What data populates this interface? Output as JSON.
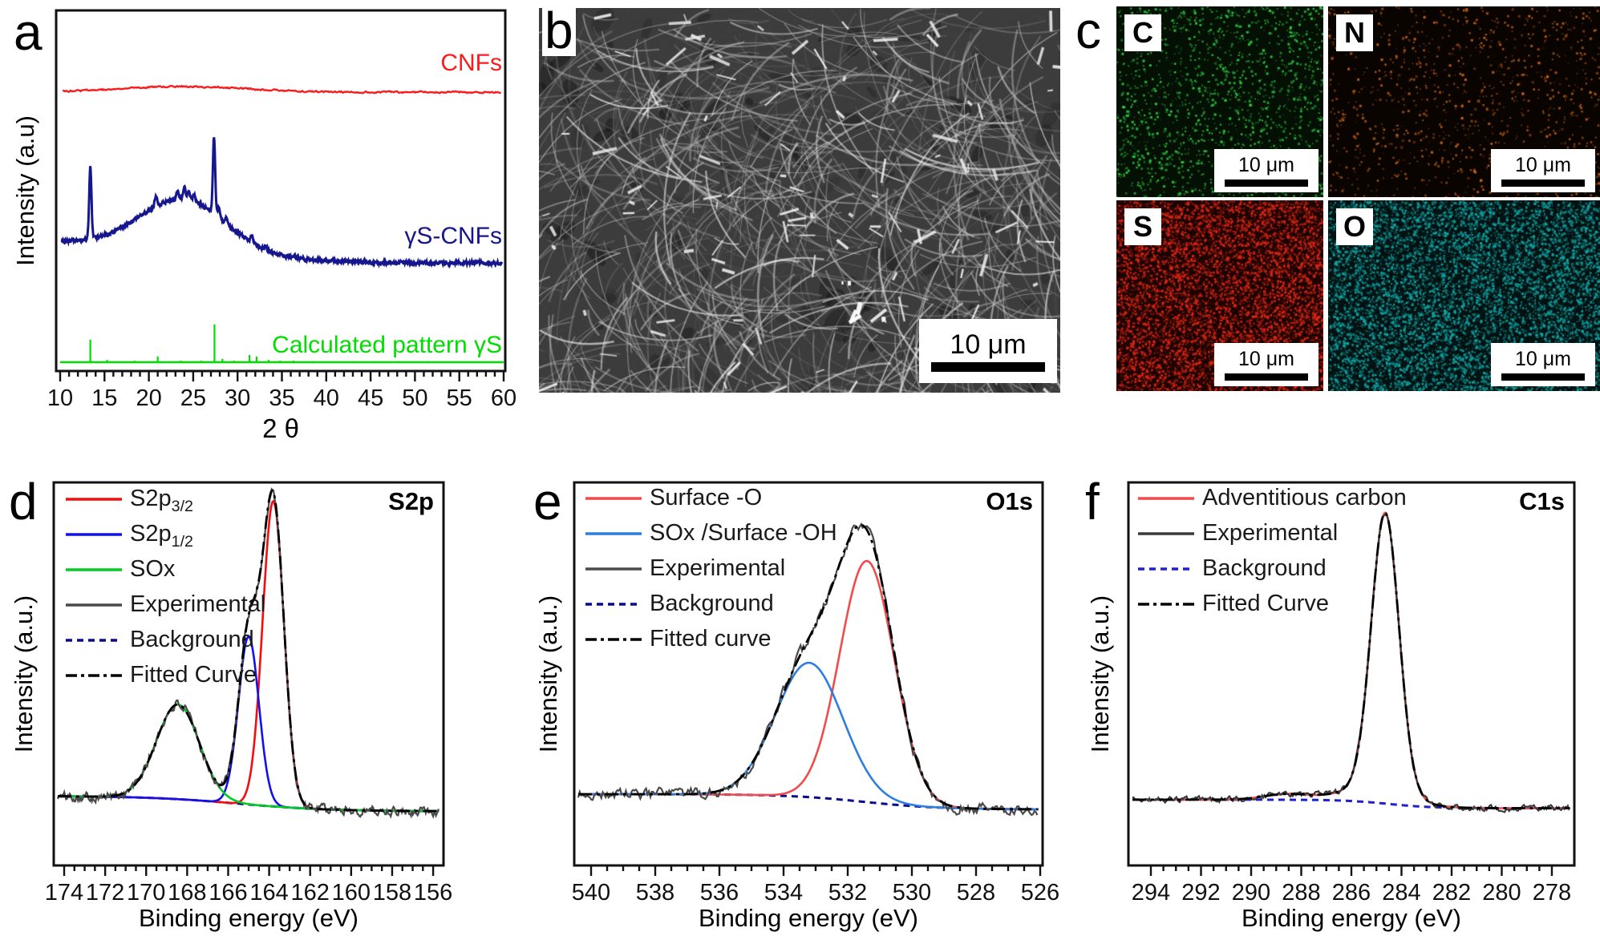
{
  "panels": {
    "a": {
      "letter": "a"
    },
    "b": {
      "letter": "b",
      "scale_label": "10 μm"
    },
    "c": {
      "letter": "c",
      "maps": [
        {
          "element": "C",
          "color": "#2ecc40",
          "bg": "#041004",
          "density": 0.1,
          "scale_label": "10 μm"
        },
        {
          "element": "N",
          "color": "#c86414",
          "bg": "#0a0400",
          "density": 0.05,
          "scale_label": "10 μm"
        },
        {
          "element": "S",
          "color": "#dd2814",
          "bg": "#1c0200",
          "density": 0.42,
          "scale_label": "10 μm"
        },
        {
          "element": "O",
          "color": "#12a4a4",
          "bg": "#021212",
          "density": 0.38,
          "scale_label": "10 μm"
        }
      ]
    },
    "d": {
      "letter": "d"
    },
    "e": {
      "letter": "e"
    },
    "f": {
      "letter": "f"
    }
  },
  "chart_data": [
    {
      "id": "xrd",
      "type": "line",
      "xlabel": "2 θ",
      "ylabel": "Intensity (a.u)",
      "x_range": [
        10,
        60
      ],
      "x_ticks": [
        10,
        15,
        20,
        25,
        30,
        35,
        40,
        45,
        50,
        55,
        60
      ],
      "series": [
        {
          "name": "CNFs",
          "color": "#f81c1c",
          "description": "near-flat trace with very weak broad hump near 24 degrees"
        },
        {
          "name": "γS-CNFs",
          "color": "#16168e",
          "broad_hump": {
            "center": 23.8,
            "sigma": 4.6,
            "rel_height": 0.36
          },
          "peaks": [
            {
              "two_theta": 13.4,
              "rel_height": 0.57
            },
            {
              "two_theta": 20.8,
              "rel_height": 0.09
            },
            {
              "two_theta": 23.2,
              "rel_height": 0.06
            },
            {
              "two_theta": 24.0,
              "rel_height": 0.1
            },
            {
              "two_theta": 24.5,
              "rel_height": 0.075
            },
            {
              "two_theta": 25.1,
              "rel_height": 0.05
            },
            {
              "two_theta": 27.35,
              "rel_height": 0.6
            },
            {
              "two_theta": 27.9,
              "rel_height": 0.09
            },
            {
              "two_theta": 28.7,
              "rel_height": 0.05
            },
            {
              "two_theta": 31.6,
              "rel_height": 0.06
            },
            {
              "two_theta": 33.2,
              "rel_height": 0.03
            }
          ]
        },
        {
          "name": "Calculated pattern γS",
          "color": "#00dd00",
          "peaks": [
            [
              13.4,
              0.6
            ],
            [
              15.3,
              0.06
            ],
            [
              18.4,
              0.04
            ],
            [
              21.0,
              0.15
            ],
            [
              23.6,
              0.04
            ],
            [
              25.9,
              0.04
            ],
            [
              27.4,
              1.0
            ],
            [
              28.3,
              0.09
            ],
            [
              29.6,
              0.04
            ],
            [
              31.35,
              0.19
            ],
            [
              32.15,
              0.15
            ],
            [
              33.5,
              0.06
            ],
            [
              34.8,
              0.04
            ],
            [
              36.3,
              0.04
            ],
            [
              38.5,
              0.03
            ],
            [
              40.2,
              0.03
            ],
            [
              43.1,
              0.03
            ],
            [
              45.6,
              0.03
            ],
            [
              48.2,
              0.03
            ],
            [
              51.4,
              0.03
            ]
          ]
        }
      ]
    },
    {
      "id": "s2p",
      "type": "line",
      "title": "S2p",
      "xlabel": "Binding energy (eV)",
      "ylabel": "Intensity (a.u.)",
      "x_range": [
        174,
        156
      ],
      "x_reversed": true,
      "x_ticks": [
        174,
        172,
        170,
        168,
        166,
        164,
        162,
        160,
        158,
        156
      ],
      "components": [
        {
          "name": "S2p3/2",
          "color": "#f50d0d",
          "center": 163.8,
          "sigma": 0.52,
          "amplitude": 1.0
        },
        {
          "name": "S2p1/2",
          "color": "#1111ee",
          "center": 165.0,
          "sigma": 0.5,
          "amplitude": 0.55
        },
        {
          "name": "SOx",
          "color": "#00cc22",
          "center": 168.45,
          "sigma": 1.05,
          "amplitude": 0.31
        }
      ],
      "background": {
        "color": "#0a0a8c",
        "left_level": 0.07,
        "right_level": 0.02,
        "step_center": 165.5,
        "step_width": 2.2
      },
      "experimental": {
        "color": "#4a4a4a",
        "noise": 0.012
      },
      "fitted": {
        "color": "#000000"
      },
      "legend": [
        {
          "label": "S2p",
          "sub": "3/2",
          "color": "#f50d0d",
          "style": "solid"
        },
        {
          "label": "S2p",
          "sub": "1/2",
          "color": "#1111ee",
          "style": "solid"
        },
        {
          "label": "SOx",
          "color": "#00cc22",
          "style": "solid"
        },
        {
          "label": "Experimental",
          "color": "#4a4a4a",
          "style": "solid"
        },
        {
          "label": "Background",
          "color": "#0a0a8c",
          "style": "dashed"
        },
        {
          "label": "Fitted Curve",
          "color": "#000000",
          "style": "dashdot"
        }
      ]
    },
    {
      "id": "o1s",
      "type": "line",
      "title": "O1s",
      "xlabel": "Binding energy (eV)",
      "ylabel": "Intensity (a.u.)",
      "x_range": [
        540,
        526
      ],
      "x_reversed": true,
      "x_ticks": [
        540,
        538,
        536,
        534,
        532,
        530,
        528,
        526
      ],
      "components": [
        {
          "name": "Surface -O",
          "color": "#f24b4b",
          "center": 531.4,
          "sigma": 0.85,
          "amplitude": 0.79
        },
        {
          "name": "SOx /Surface -OH",
          "color": "#2e7de0",
          "center": 533.2,
          "sigma": 1.05,
          "amplitude": 0.44
        }
      ],
      "background": {
        "color": "#0a0a8c",
        "left_level": 0.076,
        "right_level": 0.026,
        "step_center": 531.5,
        "step_width": 1.2
      },
      "experimental": {
        "color": "#4a4a4a",
        "noise": 0.015
      },
      "fitted": {
        "color": "#000000"
      },
      "legend": [
        {
          "label": "Surface -O",
          "color": "#f24b4b",
          "style": "solid"
        },
        {
          "label": "SOx /Surface -OH",
          "color": "#2e7de0",
          "style": "solid"
        },
        {
          "label": "Experimental",
          "color": "#4a4a4a",
          "style": "solid"
        },
        {
          "label": "Background",
          "color": "#0a0a8c",
          "style": "dashed"
        },
        {
          "label": "Fitted curve",
          "color": "#000000",
          "style": "dashdot"
        }
      ]
    },
    {
      "id": "c1s",
      "type": "line",
      "title": "C1s",
      "xlabel": "Binding energy (eV)",
      "ylabel": "Intensity (a.u.)",
      "x_range": [
        294,
        278
      ],
      "x_reversed": true,
      "x_ticks": [
        294,
        292,
        290,
        288,
        286,
        284,
        282,
        280,
        278
      ],
      "components": [
        {
          "name": "Adventitious carbon",
          "color": "#f24b4b",
          "gaussians": [
            [
              284.65,
              0.55,
              0.91
            ],
            [
              285.1,
              1.3,
              0.045
            ],
            [
              288.6,
              0.9,
              0.018
            ]
          ]
        }
      ],
      "background": {
        "color": "#2121cc",
        "left_level": 0.058,
        "right_level": 0.03,
        "step_center": 284.5,
        "step_width": 0.9
      },
      "experimental": {
        "color": "#3a3a3a",
        "noise": 0.007
      },
      "fitted": {
        "color": "#000000"
      },
      "legend": [
        {
          "label": "Adventitious carbon",
          "color": "#f24b4b",
          "style": "solid"
        },
        {
          "label": "Experimental",
          "color": "#3a3a3a",
          "style": "solid"
        },
        {
          "label": "Background",
          "color": "#2121cc",
          "style": "dashed"
        },
        {
          "label": "Fitted Curve",
          "color": "#000000",
          "style": "dashdot"
        }
      ]
    }
  ]
}
